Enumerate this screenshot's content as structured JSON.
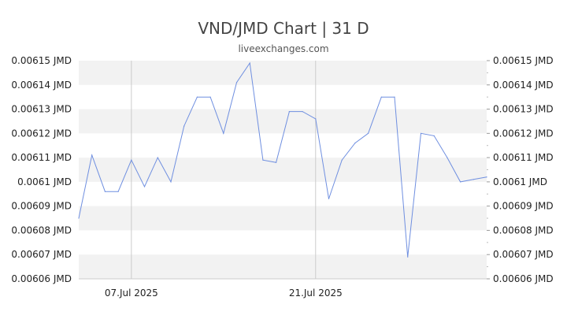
{
  "chart_data": {
    "type": "line",
    "title": "VND/JMD Chart | 31 D",
    "subtitle": "liveexchanges.com",
    "xlabel": "",
    "ylabel": "",
    "ylim": [
      0.00606,
      0.00615
    ],
    "y_ticks": [
      0.00606,
      0.00607,
      0.00608,
      0.00609,
      0.0061,
      0.00611,
      0.00612,
      0.00613,
      0.00614,
      0.00615
    ],
    "y_tick_labels": [
      "0.00606 JMD",
      "0.00607 JMD",
      "0.00608 JMD",
      "0.00609 JMD",
      "0.0061 JMD",
      "0.00611 JMD",
      "0.00612 JMD",
      "0.00613 JMD",
      "0.00614 JMD",
      "0.00615 JMD"
    ],
    "x_tick_labels": [
      "07.Jul 2025",
      "21.Jul 2025"
    ],
    "x_tick_index": [
      4,
      18
    ],
    "grid": true,
    "series": [
      {
        "color": "#6f8fe0",
        "values": [
          0.006085,
          0.006111,
          0.006096,
          0.006096,
          0.006109,
          0.006098,
          0.00611,
          0.0061,
          0.006123,
          0.006135,
          0.006135,
          0.00612,
          0.006141,
          0.006149,
          0.006109,
          0.006108,
          0.006129,
          0.006129,
          0.006126,
          0.006093,
          0.006109,
          0.006116,
          0.00612,
          0.006135,
          0.006135,
          0.006069,
          0.00612,
          0.006119,
          0.00611,
          0.0061,
          0.006101,
          0.006102
        ]
      }
    ]
  }
}
